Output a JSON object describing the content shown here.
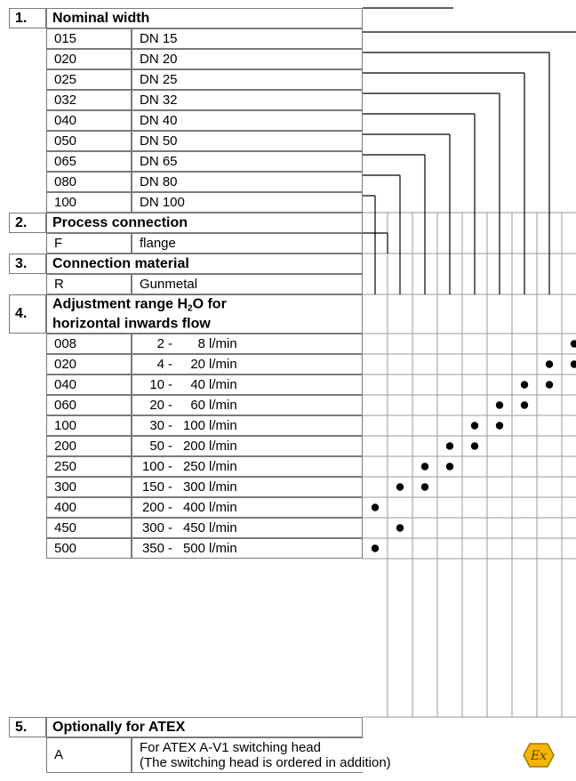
{
  "sections": [
    {
      "number": "1.",
      "title": "Nominal width",
      "rows": [
        {
          "code": "015",
          "label": "DN  15"
        },
        {
          "code": "020",
          "label": "DN  20"
        },
        {
          "code": "025",
          "label": "DN  25"
        },
        {
          "code": "032",
          "label": "DN  32"
        },
        {
          "code": "040",
          "label": "DN  40"
        },
        {
          "code": "050",
          "label": "DN  50"
        },
        {
          "code": "065",
          "label": "DN  65"
        },
        {
          "code": "080",
          "label": "DN  80"
        },
        {
          "code": "100",
          "label": "DN 100"
        }
      ]
    },
    {
      "number": "2.",
      "title": "Process connection",
      "rows": [
        {
          "code": "F",
          "label": "flange"
        }
      ]
    },
    {
      "number": "3.",
      "title": "Connection material",
      "rows": [
        {
          "code": "R",
          "label": "Gunmetal"
        }
      ]
    },
    {
      "number": "4.",
      "title_line1": "Adjustment range H",
      "title_sub": "2",
      "title_line1_end": "O for",
      "title_line2": "horizontal inwards flow",
      "rows": [
        {
          "code": "008",
          "from": "2",
          "to": "8",
          "unit": "l/min"
        },
        {
          "code": "020",
          "from": "4",
          "to": "20",
          "unit": "l/min"
        },
        {
          "code": "040",
          "from": "10",
          "to": "40",
          "unit": "l/min"
        },
        {
          "code": "060",
          "from": "20",
          "to": "60",
          "unit": "l/min"
        },
        {
          "code": "100",
          "from": "30",
          "to": "100",
          "unit": "l/min"
        },
        {
          "code": "200",
          "from": "50",
          "to": "200",
          "unit": "l/min"
        },
        {
          "code": "250",
          "from": "100",
          "to": "250",
          "unit": "l/min"
        },
        {
          "code": "300",
          "from": "150",
          "to": "300",
          "unit": "l/min"
        },
        {
          "code": "400",
          "from": "200",
          "to": "400",
          "unit": "l/min"
        },
        {
          "code": "450",
          "from": "300",
          "to": "450",
          "unit": "l/min"
        },
        {
          "code": "500",
          "from": "350",
          "to": "500",
          "unit": "l/min"
        }
      ]
    },
    {
      "number": "5.",
      "title": "Optionally for ATEX",
      "rows": [
        {
          "code": "A",
          "label_line1": "For ATEX A-V1 switching head",
          "label_line2": "(The switching head is ordered in addition)"
        }
      ]
    }
  ],
  "compatibility_dots": {
    "008": [
      9
    ],
    "020": [
      8,
      9
    ],
    "040": [
      7,
      8
    ],
    "060": [
      6,
      7
    ],
    "100": [
      5,
      6
    ],
    "200": [
      4,
      5
    ],
    "250": [
      3,
      4
    ],
    "300": [
      2,
      3
    ],
    "400": [
      1
    ],
    "450": [
      2
    ],
    "500": [
      1
    ]
  },
  "atex_icon": {
    "name": "ex-atex-icon",
    "symbol": "Ex",
    "color": "#f2b600",
    "stroke": "#8a6400"
  }
}
